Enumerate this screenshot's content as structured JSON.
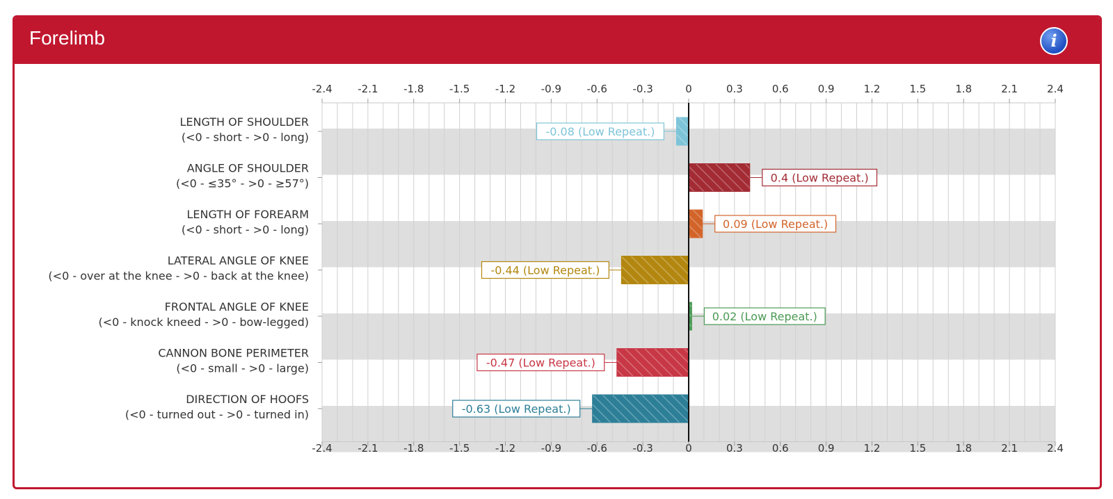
{
  "panel": {
    "title": "Forelimb",
    "info_icon": "info-icon",
    "accent": "#c0172f"
  },
  "chart_data": {
    "type": "bar",
    "orientation": "horizontal",
    "title": "Forelimb",
    "xlim": [
      -2.4,
      2.4
    ],
    "x_ticks": [
      "-2.4",
      "-2.1",
      "-1.8",
      "-1.5",
      "-1.2",
      "-0.9",
      "-0.6",
      "-0.3",
      "0",
      "0.3",
      "0.6",
      "0.9",
      "1.2",
      "1.5",
      "1.8",
      "2.1",
      "2.4"
    ],
    "grid": true,
    "categories": [
      {
        "name": "LENGTH OF SHOULDER",
        "scale": "(<0 - short - >0 - long)",
        "value": -0.08,
        "label": "-0.08 (Low Repeat.)",
        "color": "#7ec4d8"
      },
      {
        "name": "ANGLE OF SHOULDER",
        "scale": "(<0 - ≤35° - >0 - ≥57°)",
        "value": 0.4,
        "label": "0.4 (Low Repeat.)",
        "color": "#a32b34"
      },
      {
        "name": "LENGTH OF FOREARM",
        "scale": "(<0 - short - >0 - long)",
        "value": 0.09,
        "label": "0.09 (Low Repeat.)",
        "color": "#d2642a"
      },
      {
        "name": "LATERAL ANGLE OF KNEE",
        "scale": "(<0 - over at the knee - >0 - back at the knee)",
        "value": -0.44,
        "label": "-0.44 (Low Repeat.)",
        "color": "#b3870f"
      },
      {
        "name": "FRONTAL ANGLE OF KNEE",
        "scale": "(<0 - knock kneed - >0 - bow-legged)",
        "value": 0.02,
        "label": "0.02 (Low Repeat.)",
        "color": "#4a9a55"
      },
      {
        "name": "CANNON BONE PERIMETER",
        "scale": "(<0 - small - >0 - large)",
        "value": -0.47,
        "label": "-0.47 (Low Repeat.)",
        "color": "#c83745"
      },
      {
        "name": "DIRECTION OF HOOFS",
        "scale": "(<0 - turned out - >0 - turned in)",
        "value": -0.63,
        "label": "-0.63 (Low Repeat.)",
        "color": "#2d7f98"
      }
    ]
  }
}
